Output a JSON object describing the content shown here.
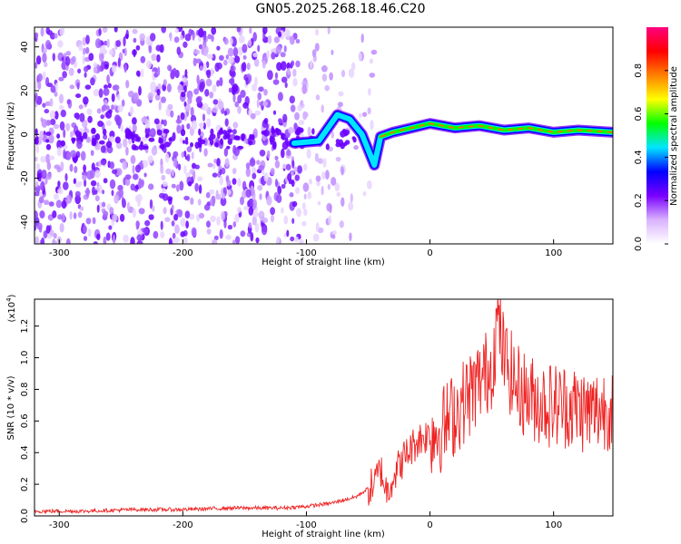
{
  "title": "GN05.2025.268.18.46.C20",
  "chart_data": [
    {
      "type": "heatmap",
      "xlabel": "Height of straight line (km)",
      "ylabel": "Frequency (Hz)",
      "xlim": [
        -320,
        148
      ],
      "ylim": [
        -50,
        49
      ],
      "xticks": [
        -300,
        -200,
        -100,
        0,
        100
      ],
      "yticks": [
        -40,
        -20,
        0,
        20,
        40
      ],
      "colorbar": {
        "label": "Normalized spectral amplitude",
        "range": [
          0.0,
          1.0
        ],
        "ticks": [
          "0.0",
          "0.2",
          "0.4",
          "0.6",
          "0.8"
        ],
        "colors": [
          "#ffffff",
          "#d9b3ff",
          "#7a00ff",
          "#0000ff",
          "#00e5ff",
          "#00ff00",
          "#ffff00",
          "#ff8000",
          "#ff0000",
          "#ff0080"
        ]
      },
      "ridge": [
        {
          "x": -110,
          "y": -4
        },
        {
          "x": -90,
          "y": -3
        },
        {
          "x": -75,
          "y": 9
        },
        {
          "x": -65,
          "y": 7
        },
        {
          "x": -55,
          "y": 0
        },
        {
          "x": -45,
          "y": -14
        },
        {
          "x": -40,
          "y": -1
        },
        {
          "x": -30,
          "y": 1
        },
        {
          "x": -15,
          "y": 3
        },
        {
          "x": 0,
          "y": 5
        },
        {
          "x": 20,
          "y": 3
        },
        {
          "x": 40,
          "y": 4
        },
        {
          "x": 60,
          "y": 2
        },
        {
          "x": 80,
          "y": 3
        },
        {
          "x": 100,
          "y": 1
        },
        {
          "x": 120,
          "y": 2
        },
        {
          "x": 148,
          "y": 1
        }
      ]
    },
    {
      "type": "line",
      "xlabel": "Height of straight line (km)",
      "ylabel": "SNR (10 * v/v)",
      "yscale_label": "(x10",
      "yscale_exp": "4",
      "xlim": [
        -320,
        148
      ],
      "ylim": [
        0,
        1.37
      ],
      "xticks": [
        -300,
        -200,
        -100,
        0,
        100
      ],
      "yticks": [
        0.0,
        0.2,
        0.4,
        0.6,
        0.8,
        1.0,
        1.2
      ],
      "series": [
        {
          "color": "#ee2222",
          "points": [
            [
              -320,
              0.03
            ],
            [
              -280,
              0.03
            ],
            [
              -240,
              0.04
            ],
            [
              -200,
              0.04
            ],
            [
              -160,
              0.05
            ],
            [
              -120,
              0.05
            ],
            [
              -100,
              0.06
            ],
            [
              -80,
              0.08
            ],
            [
              -60,
              0.12
            ],
            [
              -45,
              0.2
            ],
            [
              -40,
              0.3
            ],
            [
              -35,
              0.15
            ],
            [
              -30,
              0.25
            ],
            [
              -20,
              0.38
            ],
            [
              -10,
              0.48
            ],
            [
              0,
              0.52
            ],
            [
              10,
              0.55
            ],
            [
              20,
              0.65
            ],
            [
              30,
              0.75
            ],
            [
              40,
              0.85
            ],
            [
              50,
              0.95
            ],
            [
              55,
              1.25
            ],
            [
              60,
              1.0
            ],
            [
              70,
              0.82
            ],
            [
              80,
              0.75
            ],
            [
              90,
              0.72
            ],
            [
              100,
              0.7
            ],
            [
              110,
              0.7
            ],
            [
              120,
              0.68
            ],
            [
              130,
              0.65
            ],
            [
              140,
              0.68
            ],
            [
              148,
              0.7
            ]
          ]
        }
      ]
    }
  ]
}
